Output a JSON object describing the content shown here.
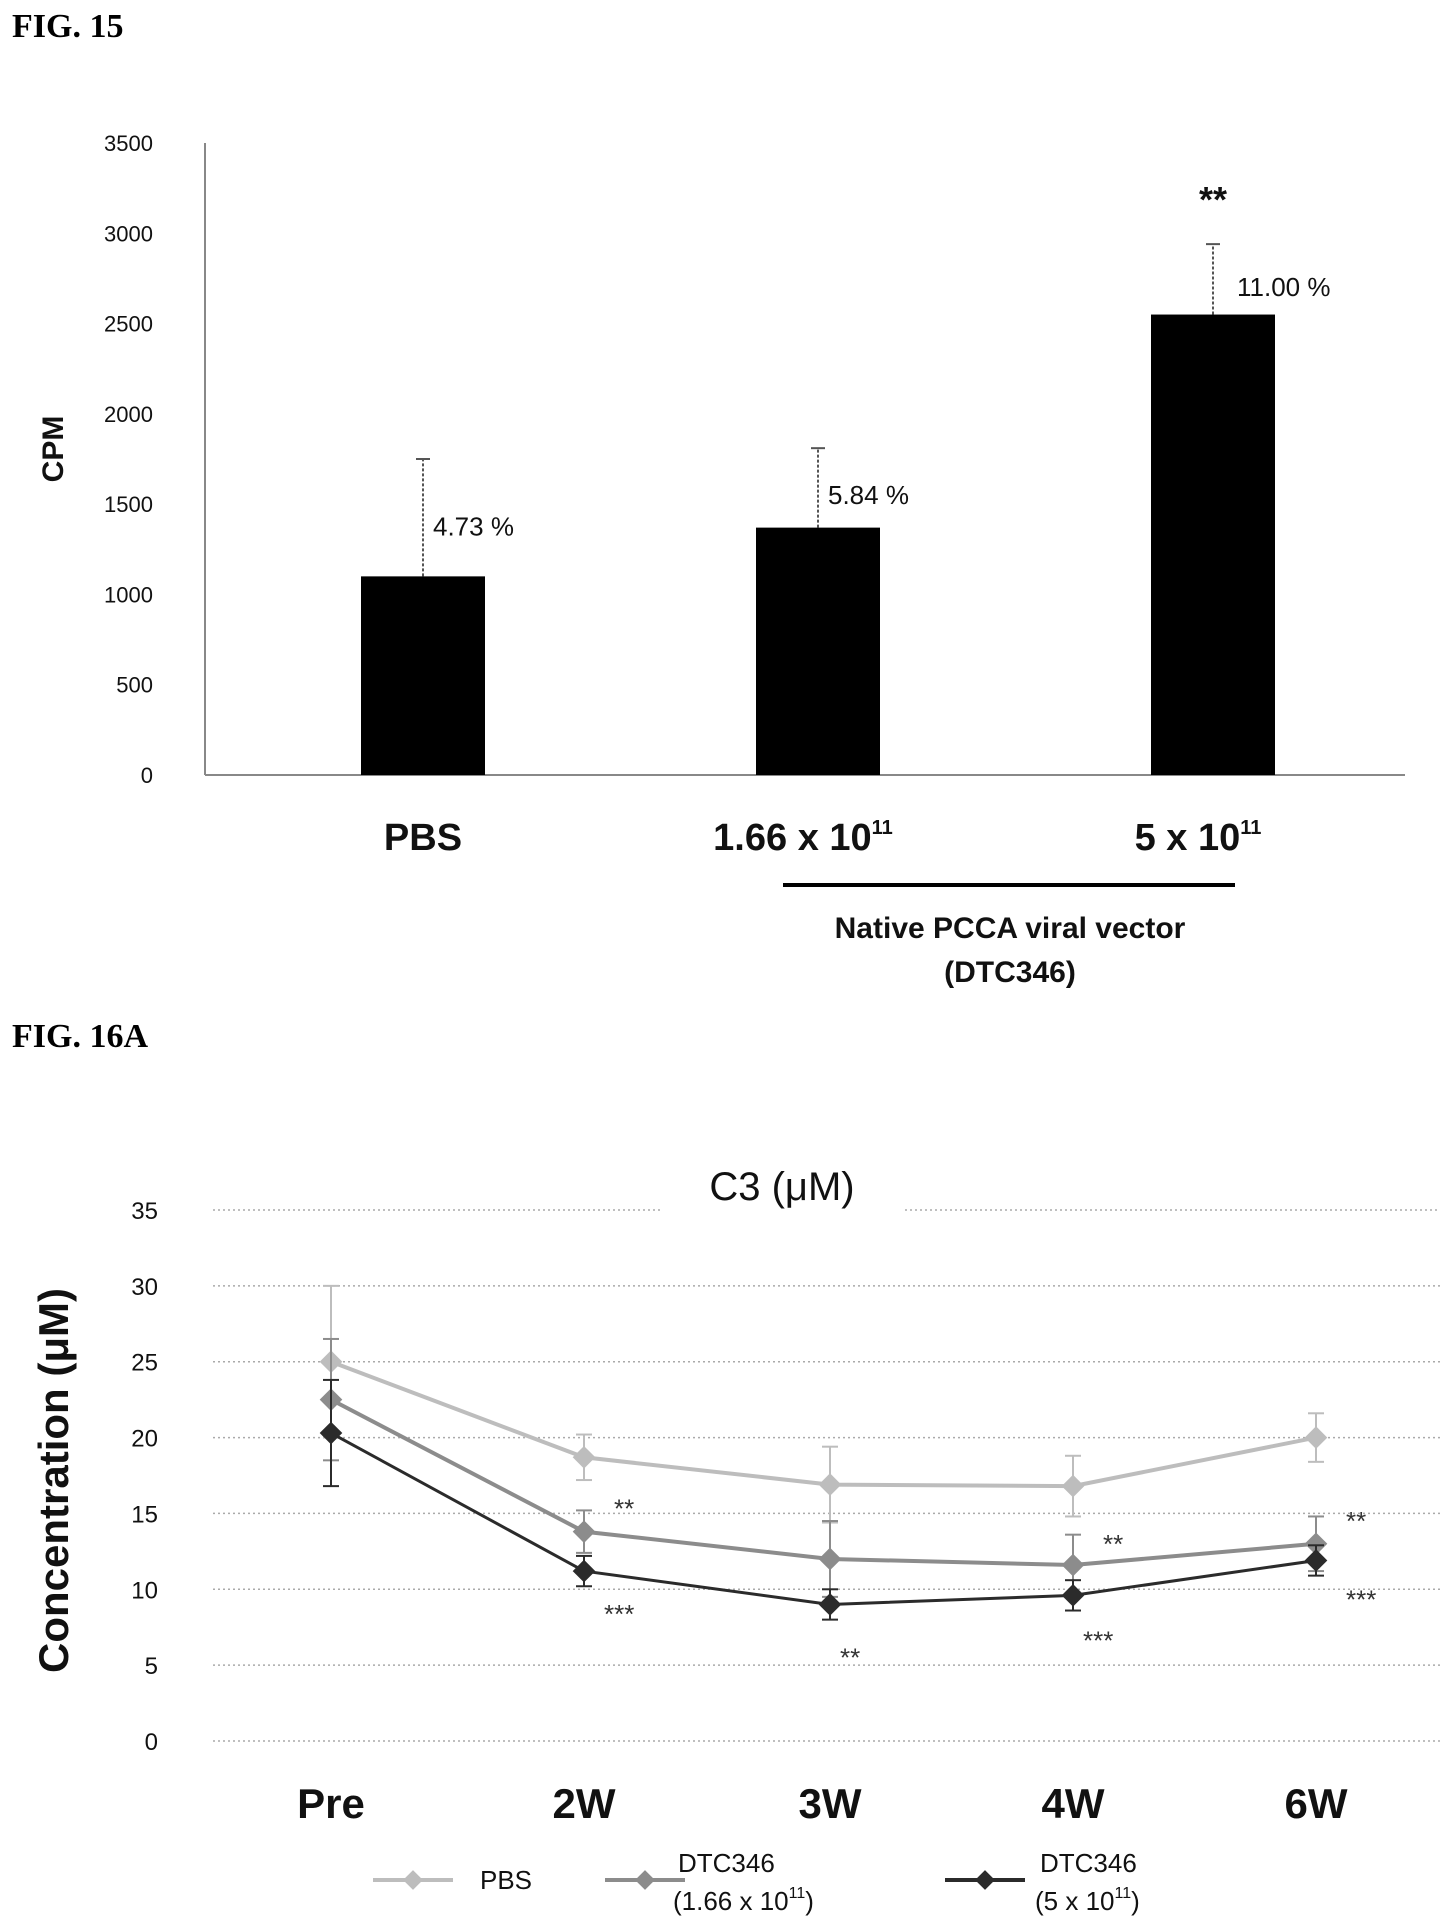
{
  "figures": {
    "fig15_label": "FIG. 15",
    "fig16a_label": "FIG. 16A"
  },
  "chart_data": [
    {
      "type": "bar",
      "ylabel": "CPM",
      "ylim": [
        0,
        3500
      ],
      "yticks": [
        "0",
        "500",
        "1000",
        "1500",
        "2000",
        "2500",
        "3000",
        "3500"
      ],
      "categories": [
        "PBS",
        "1.66 x 10",
        "5 x 10"
      ],
      "category_superscripts": [
        "",
        "11",
        "11"
      ],
      "values": [
        1100,
        1370,
        2550
      ],
      "error_upper": [
        1750,
        1810,
        2940
      ],
      "bar_labels": [
        "4.73 %",
        "5.84 %",
        "11.00 %"
      ],
      "significance": [
        "",
        "",
        "**"
      ],
      "group_label_line1": "Native PCCA viral vector",
      "group_label_line2": "(DTC346)",
      "bar_color": "#000000",
      "grid": false
    },
    {
      "type": "line",
      "title": "C3 (μM)",
      "ylabel": "Concentration (μM)",
      "ylim": [
        0,
        35
      ],
      "yticks": [
        "0",
        "5",
        "10",
        "15",
        "20",
        "25",
        "30",
        "35"
      ],
      "categories": [
        "Pre",
        "2W",
        "3W",
        "4W",
        "6W"
      ],
      "grid": true,
      "legend_position": "bottom",
      "series": [
        {
          "name": "PBS",
          "color": "#bdbdbd",
          "values": [
            25.0,
            18.7,
            16.9,
            16.8,
            20.0
          ],
          "error": [
            5.0,
            1.5,
            2.5,
            2.0,
            1.6
          ],
          "stars": [
            "",
            "",
            "",
            "",
            ""
          ]
        },
        {
          "name": "DTC346 (1.66 x 10",
          "name_sup": "11",
          "name_end": ")",
          "color": "#8c8c8c",
          "values": [
            22.5,
            13.8,
            12.0,
            11.6,
            13.0
          ],
          "error": [
            4.0,
            1.4,
            2.5,
            2.0,
            1.8
          ],
          "stars": [
            "",
            "**",
            "",
            "**",
            "**"
          ]
        },
        {
          "name": "DTC346 (5 x 10",
          "name_sup": "11",
          "name_end": ")",
          "color": "#2b2b2b",
          "values": [
            20.3,
            11.2,
            9.0,
            9.6,
            11.9
          ],
          "error": [
            3.5,
            1.0,
            1.0,
            1.0,
            1.0
          ],
          "stars": [
            "",
            "***",
            "**",
            "***",
            "***"
          ]
        }
      ]
    }
  ]
}
